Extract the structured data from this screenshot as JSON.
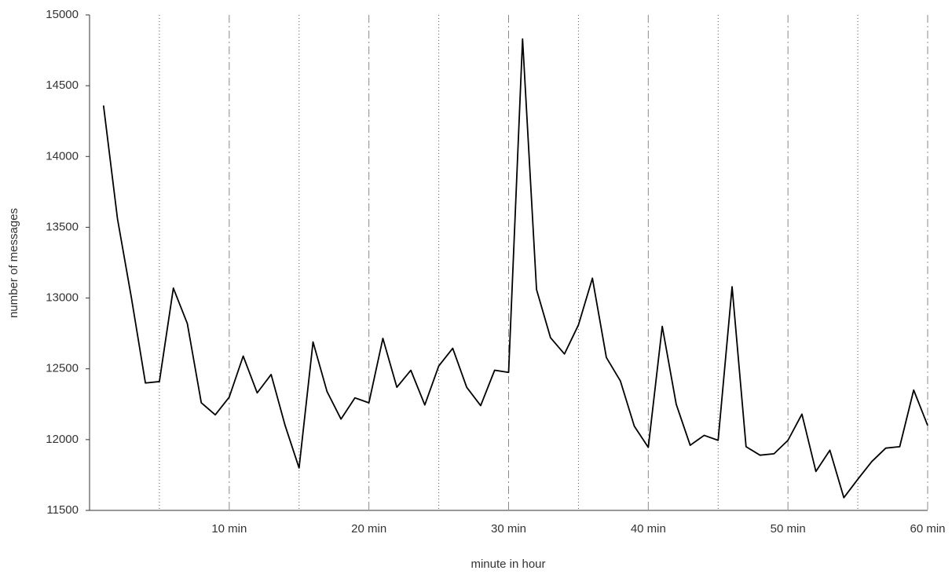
{
  "chart_data": {
    "type": "line",
    "x_label": "minute in hour",
    "y_label": "number of messages",
    "x": [
      1,
      2,
      3,
      4,
      5,
      6,
      7,
      8,
      9,
      10,
      11,
      12,
      13,
      14,
      15,
      16,
      17,
      18,
      19,
      20,
      21,
      22,
      23,
      24,
      25,
      26,
      27,
      28,
      29,
      30,
      31,
      32,
      33,
      34,
      35,
      36,
      37,
      38,
      39,
      40,
      41,
      42,
      43,
      44,
      45,
      46,
      47,
      48,
      49,
      50,
      51,
      52,
      53,
      54,
      55,
      56,
      57,
      58,
      59,
      60
    ],
    "series": [
      {
        "color": "#000000",
        "values": [
          14360,
          13560,
          13000,
          12400,
          12410,
          13070,
          12820,
          12260,
          12175,
          12300,
          12590,
          12330,
          12460,
          12100,
          11800,
          12690,
          12340,
          12145,
          12295,
          12260,
          12715,
          12370,
          12490,
          12245,
          12520,
          12645,
          12370,
          12240,
          12490,
          12475,
          14830,
          13060,
          12720,
          12605,
          12810,
          13140,
          12580,
          12415,
          12095,
          11945,
          12800,
          12250,
          11960,
          12030,
          11995,
          13080,
          11950,
          11890,
          11900,
          11995,
          12180,
          11775,
          11925,
          11590,
          11720,
          11845,
          11940,
          11950,
          12350,
          12100
        ]
      }
    ],
    "xlim": [
      0,
      60
    ],
    "xticks": [
      {
        "value": 10,
        "label": "10 min"
      },
      {
        "value": 20,
        "label": "20 min"
      },
      {
        "value": 30,
        "label": "30 min"
      },
      {
        "value": 40,
        "label": "40 min"
      },
      {
        "value": 50,
        "label": "50 min"
      },
      {
        "value": 60,
        "label": "60 min"
      }
    ],
    "minor_xticks": [
      5,
      15,
      25,
      35,
      45,
      55
    ],
    "ylim": [
      11500,
      15000
    ],
    "yticks": [
      11500,
      12000,
      12500,
      13000,
      13500,
      14000,
      14500,
      15000
    ],
    "grid": true
  }
}
